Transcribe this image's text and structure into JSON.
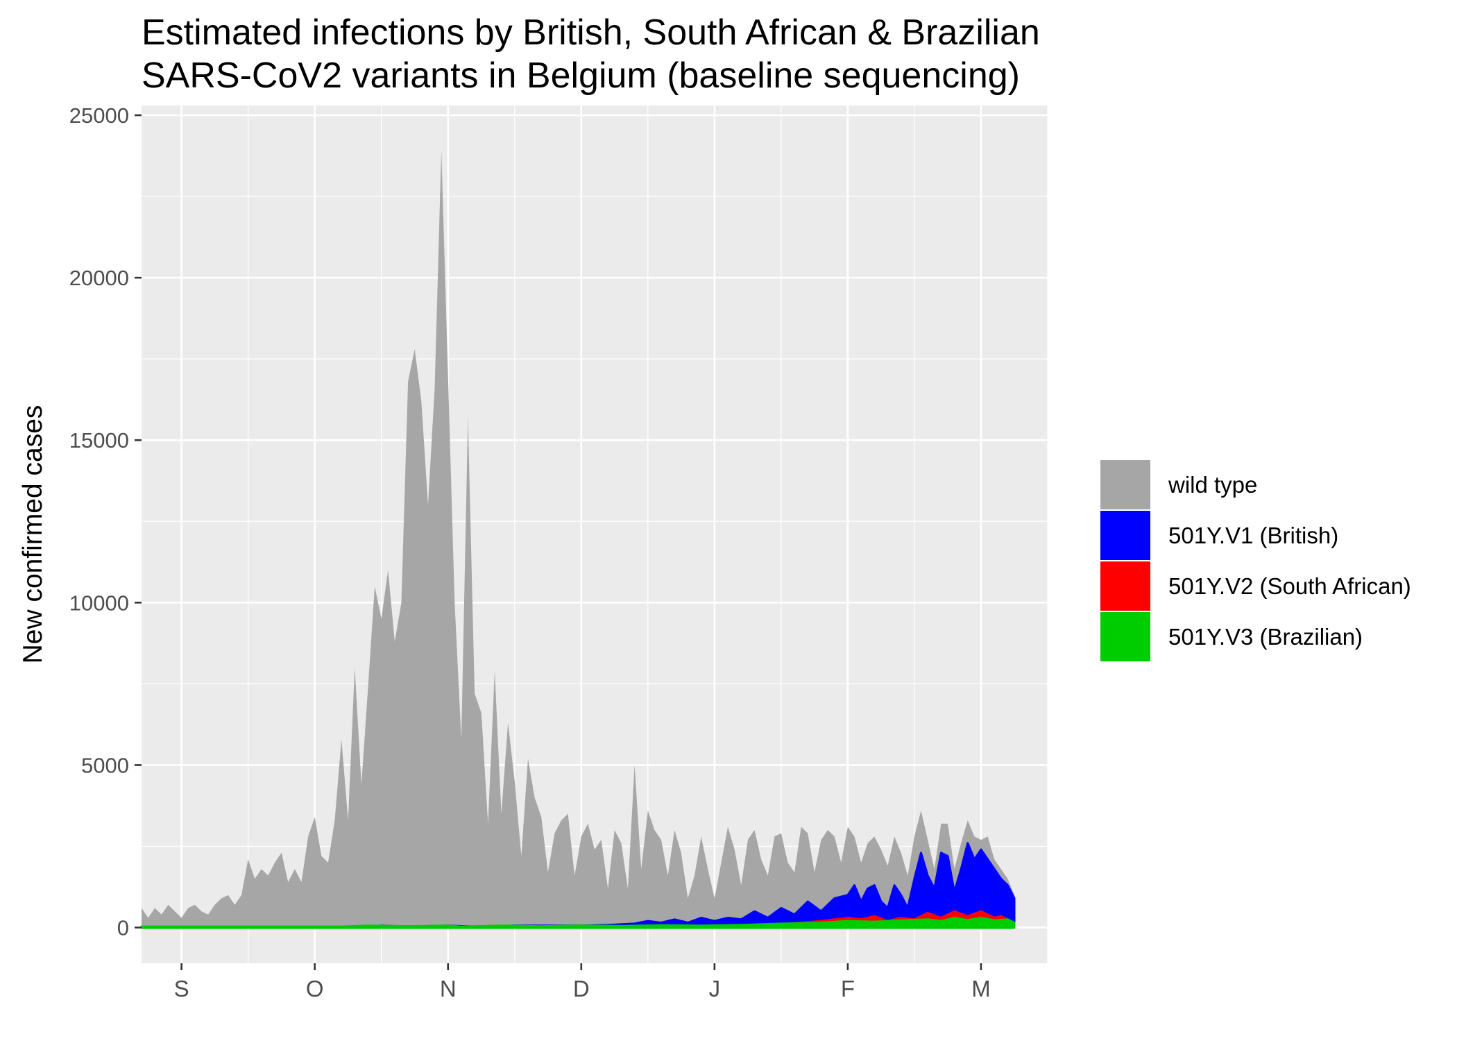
{
  "chart_data": {
    "type": "area",
    "title_lines": [
      "Estimated infections by British, South African & Brazilian",
      "SARS-CoV2 variants in Belgium (baseline sequencing)"
    ],
    "xlabel": "",
    "ylabel": "New confirmed cases",
    "x_tick_labels": [
      "S",
      "O",
      "N",
      "D",
      "J",
      "F",
      "M"
    ],
    "x_tick_positions_month": [
      0,
      1,
      2,
      3,
      4,
      5,
      6
    ],
    "xlim_month": [
      -0.3,
      6.5
    ],
    "x_data_range_month": [
      -0.3,
      6.25
    ],
    "y_ticks": [
      0,
      5000,
      10000,
      15000,
      20000,
      25000
    ],
    "ylim": [
      -1100,
      25300
    ],
    "grid": true,
    "legend_position": "right",
    "stacked": true,
    "series": [
      {
        "name": "wild type",
        "color": "#a6a6a6",
        "shape": "total_above_variants",
        "profile_month_value": [
          [
            -0.3,
            600
          ],
          [
            -0.25,
            300
          ],
          [
            -0.2,
            600
          ],
          [
            -0.15,
            400
          ],
          [
            -0.1,
            700
          ],
          [
            -0.05,
            500
          ],
          [
            0,
            300
          ],
          [
            0.05,
            600
          ],
          [
            0.1,
            700
          ],
          [
            0.15,
            500
          ],
          [
            0.2,
            400
          ],
          [
            0.25,
            700
          ],
          [
            0.3,
            900
          ],
          [
            0.35,
            1000
          ],
          [
            0.4,
            700
          ],
          [
            0.45,
            1000
          ],
          [
            0.5,
            2100
          ],
          [
            0.55,
            1500
          ],
          [
            0.6,
            1800
          ],
          [
            0.65,
            1600
          ],
          [
            0.7,
            2000
          ],
          [
            0.75,
            2300
          ],
          [
            0.8,
            1400
          ],
          [
            0.85,
            1800
          ],
          [
            0.9,
            1400
          ],
          [
            0.95,
            2800
          ],
          [
            1.0,
            3400
          ],
          [
            1.05,
            2200
          ],
          [
            1.1,
            2000
          ],
          [
            1.15,
            3300
          ],
          [
            1.2,
            5800
          ],
          [
            1.25,
            3300
          ],
          [
            1.3,
            8000
          ],
          [
            1.35,
            4400
          ],
          [
            1.4,
            7400
          ],
          [
            1.45,
            10500
          ],
          [
            1.5,
            9500
          ],
          [
            1.55,
            11000
          ],
          [
            1.6,
            8800
          ],
          [
            1.65,
            10000
          ],
          [
            1.7,
            16800
          ],
          [
            1.75,
            17800
          ],
          [
            1.8,
            16200
          ],
          [
            1.85,
            13000
          ],
          [
            1.9,
            16600
          ],
          [
            1.95,
            23900
          ],
          [
            2.0,
            17000
          ],
          [
            2.05,
            10000
          ],
          [
            2.1,
            5800
          ],
          [
            2.15,
            15700
          ],
          [
            2.2,
            7200
          ],
          [
            2.25,
            6600
          ],
          [
            2.3,
            3200
          ],
          [
            2.35,
            7900
          ],
          [
            2.4,
            3500
          ],
          [
            2.45,
            6300
          ],
          [
            2.5,
            4500
          ],
          [
            2.55,
            2200
          ],
          [
            2.6,
            5200
          ],
          [
            2.65,
            4000
          ],
          [
            2.7,
            3400
          ],
          [
            2.75,
            1700
          ],
          [
            2.8,
            2900
          ],
          [
            2.85,
            3300
          ],
          [
            2.9,
            3500
          ],
          [
            2.95,
            1600
          ],
          [
            3.0,
            2800
          ],
          [
            3.05,
            3200
          ],
          [
            3.1,
            2400
          ],
          [
            3.15,
            2700
          ],
          [
            3.2,
            1200
          ],
          [
            3.25,
            3000
          ],
          [
            3.3,
            2600
          ],
          [
            3.35,
            1200
          ],
          [
            3.4,
            5000
          ],
          [
            3.45,
            1800
          ],
          [
            3.5,
            3600
          ],
          [
            3.55,
            3000
          ],
          [
            3.6,
            2700
          ],
          [
            3.65,
            1600
          ],
          [
            3.7,
            3000
          ],
          [
            3.75,
            2300
          ],
          [
            3.8,
            900
          ],
          [
            3.85,
            1600
          ],
          [
            3.9,
            2800
          ],
          [
            3.95,
            1800
          ],
          [
            4.0,
            900
          ],
          [
            4.05,
            2000
          ],
          [
            4.1,
            3100
          ],
          [
            4.15,
            2400
          ],
          [
            4.2,
            1300
          ],
          [
            4.25,
            2700
          ],
          [
            4.3,
            3000
          ],
          [
            4.35,
            2100
          ],
          [
            4.4,
            1600
          ],
          [
            4.45,
            2800
          ],
          [
            4.5,
            2900
          ],
          [
            4.55,
            2000
          ],
          [
            4.6,
            1700
          ],
          [
            4.65,
            3100
          ],
          [
            4.7,
            2900
          ],
          [
            4.75,
            1700
          ],
          [
            4.8,
            2700
          ],
          [
            4.85,
            3000
          ],
          [
            4.9,
            2800
          ],
          [
            4.95,
            2000
          ],
          [
            5.0,
            3100
          ],
          [
            5.05,
            2800
          ],
          [
            5.1,
            2000
          ],
          [
            5.15,
            2600
          ],
          [
            5.2,
            2800
          ],
          [
            5.25,
            2400
          ],
          [
            5.3,
            1900
          ],
          [
            5.35,
            2800
          ],
          [
            5.4,
            2300
          ],
          [
            5.45,
            1600
          ],
          [
            5.5,
            2800
          ],
          [
            5.55,
            3600
          ],
          [
            5.6,
            2700
          ],
          [
            5.65,
            1800
          ],
          [
            5.7,
            3200
          ],
          [
            5.75,
            3200
          ],
          [
            5.8,
            1800
          ],
          [
            5.85,
            2600
          ],
          [
            5.9,
            3300
          ],
          [
            5.95,
            2800
          ],
          [
            6.0,
            2700
          ],
          [
            6.05,
            2800
          ],
          [
            6.1,
            2100
          ],
          [
            6.15,
            1800
          ],
          [
            6.2,
            1500
          ],
          [
            6.25,
            1000
          ]
        ]
      },
      {
        "name": "501Y.V1 (British)",
        "color": "#0000ff",
        "shape": "top_boundary",
        "profile_month_value": [
          [
            -0.3,
            0
          ],
          [
            1.2,
            0
          ],
          [
            1.5,
            60
          ],
          [
            1.7,
            30
          ],
          [
            2.0,
            60
          ],
          [
            2.2,
            30
          ],
          [
            2.5,
            60
          ],
          [
            2.8,
            60
          ],
          [
            3.0,
            60
          ],
          [
            3.2,
            80
          ],
          [
            3.4,
            120
          ],
          [
            3.5,
            200
          ],
          [
            3.6,
            150
          ],
          [
            3.7,
            250
          ],
          [
            3.8,
            150
          ],
          [
            3.9,
            300
          ],
          [
            4.0,
            200
          ],
          [
            4.1,
            300
          ],
          [
            4.2,
            250
          ],
          [
            4.3,
            500
          ],
          [
            4.4,
            300
          ],
          [
            4.5,
            600
          ],
          [
            4.6,
            400
          ],
          [
            4.7,
            800
          ],
          [
            4.8,
            500
          ],
          [
            4.9,
            900
          ],
          [
            5.0,
            1000
          ],
          [
            5.05,
            1300
          ],
          [
            5.1,
            800
          ],
          [
            5.15,
            1200
          ],
          [
            5.2,
            1300
          ],
          [
            5.25,
            800
          ],
          [
            5.3,
            600
          ],
          [
            5.35,
            1300
          ],
          [
            5.4,
            1000
          ],
          [
            5.45,
            600
          ],
          [
            5.5,
            1500
          ],
          [
            5.55,
            2300
          ],
          [
            5.6,
            1600
          ],
          [
            5.65,
            1200
          ],
          [
            5.7,
            2300
          ],
          [
            5.75,
            2200
          ],
          [
            5.8,
            1100
          ],
          [
            5.85,
            1800
          ],
          [
            5.9,
            2600
          ],
          [
            5.95,
            2100
          ],
          [
            6.0,
            2400
          ],
          [
            6.05,
            2100
          ],
          [
            6.1,
            1800
          ],
          [
            6.15,
            1500
          ],
          [
            6.2,
            1300
          ],
          [
            6.25,
            900
          ]
        ]
      },
      {
        "name": "501Y.V2 (South African)",
        "color": "#ff0000",
        "shape": "top_boundary",
        "profile_month_value": [
          [
            -0.3,
            0
          ],
          [
            4.0,
            50
          ],
          [
            4.5,
            100
          ],
          [
            4.8,
            200
          ],
          [
            5.0,
            300
          ],
          [
            5.1,
            250
          ],
          [
            5.2,
            350
          ],
          [
            5.3,
            200
          ],
          [
            5.4,
            300
          ],
          [
            5.5,
            250
          ],
          [
            5.6,
            450
          ],
          [
            5.7,
            300
          ],
          [
            5.8,
            500
          ],
          [
            5.9,
            350
          ],
          [
            6.0,
            500
          ],
          [
            6.05,
            400
          ],
          [
            6.1,
            300
          ],
          [
            6.15,
            350
          ],
          [
            6.2,
            250
          ],
          [
            6.25,
            150
          ]
        ]
      },
      {
        "name": "501Y.V3 (Brazilian)",
        "color": "#00cd00",
        "shape": "top_boundary",
        "profile_month_value": [
          [
            -0.3,
            30
          ],
          [
            0.0,
            30
          ],
          [
            1.2,
            30
          ],
          [
            1.4,
            60
          ],
          [
            1.7,
            40
          ],
          [
            2.0,
            60
          ],
          [
            2.1,
            30
          ],
          [
            2.4,
            60
          ],
          [
            2.7,
            40
          ],
          [
            3.0,
            60
          ],
          [
            3.3,
            50
          ],
          [
            3.6,
            70
          ],
          [
            3.9,
            60
          ],
          [
            4.2,
            80
          ],
          [
            4.5,
            120
          ],
          [
            4.8,
            150
          ],
          [
            5.0,
            200
          ],
          [
            5.2,
            180
          ],
          [
            5.4,
            220
          ],
          [
            5.6,
            250
          ],
          [
            5.7,
            200
          ],
          [
            5.8,
            300
          ],
          [
            5.9,
            230
          ],
          [
            6.0,
            300
          ],
          [
            6.1,
            220
          ],
          [
            6.2,
            250
          ],
          [
            6.25,
            150
          ]
        ]
      }
    ]
  }
}
